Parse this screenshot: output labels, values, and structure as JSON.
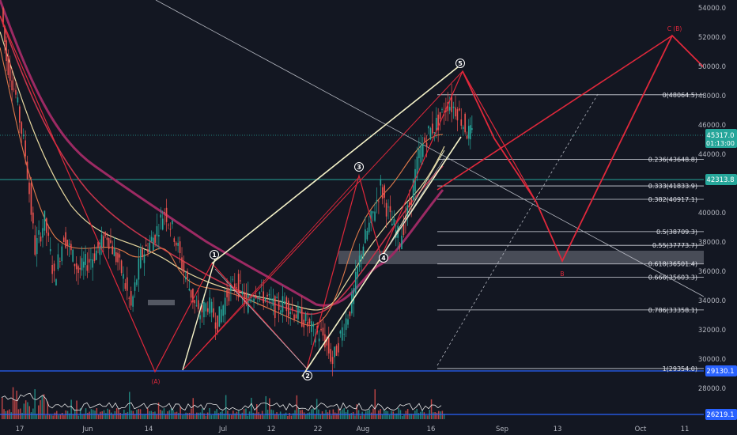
{
  "chart_data": {
    "type": "candlestick",
    "price_axis": {
      "min": 26000,
      "max": 55000,
      "ticks": [
        {
          "value": 54000,
          "label": "54000.0"
        },
        {
          "value": 52000,
          "label": "52000.0"
        },
        {
          "value": 50000,
          "label": "50000.0"
        },
        {
          "value": 48000,
          "label": "48000.0"
        },
        {
          "value": 46000,
          "label": "46000.0"
        },
        {
          "value": 44000,
          "label": "44000.0"
        },
        {
          "value": 40000,
          "label": "40000.0"
        },
        {
          "value": 38000,
          "label": "38000.0"
        },
        {
          "value": 36000,
          "label": "36000.0"
        },
        {
          "value": 34000,
          "label": "34000.0"
        },
        {
          "value": 32000,
          "label": "32000.0"
        },
        {
          "value": 30000,
          "label": "30000.0"
        },
        {
          "value": 28000,
          "label": "28000.0"
        }
      ]
    },
    "time_axis": {
      "ticks": [
        "17",
        "Jun",
        "14",
        "Jul",
        "12",
        "22",
        "Aug",
        "16",
        "Sep",
        "13",
        "Oct",
        "11"
      ]
    },
    "price_badges": [
      {
        "name": "current",
        "value": "45317.0",
        "countdown": "01:13:00",
        "color": "#26a69a"
      },
      {
        "name": "support-line",
        "value": "42313.8",
        "color": "#26a69a"
      },
      {
        "name": "low-line",
        "value": "29130.1",
        "color": "#2962ff"
      },
      {
        "name": "volume-line",
        "value": "26219.1",
        "color": "#2962ff"
      }
    ],
    "fib_levels": [
      {
        "ratio": 0,
        "price": 48064.5,
        "label": "0(48064.5)"
      },
      {
        "ratio": 0.236,
        "price": 43648.8,
        "label": "0.236(43648.8)"
      },
      {
        "ratio": 0.333,
        "price": 41833.9,
        "label": "0.333(41833.9)"
      },
      {
        "ratio": 0.382,
        "price": 40917.1,
        "label": "0.382(40917.1)"
      },
      {
        "ratio": 0.5,
        "price": 38709.3,
        "label": "0.5(38709.3)"
      },
      {
        "ratio": 0.55,
        "price": 37773.7,
        "label": "0.55(37773.7)"
      },
      {
        "ratio": 0.618,
        "price": 36501.4,
        "label": "0.618(36501.4)"
      },
      {
        "ratio": 0.666,
        "price": 35603.3,
        "label": "0.666(35603.3)"
      },
      {
        "ratio": 0.786,
        "price": 33358.1,
        "label": "0.786(33358.1)"
      },
      {
        "ratio": 1,
        "price": 29354.0,
        "label": "1(29354.0)"
      }
    ],
    "wave_labels": [
      "1",
      "2",
      "3",
      "4",
      "5"
    ],
    "corrective_labels": {
      "A_paren": "(A)",
      "B": "B",
      "C_B": "C (B)"
    },
    "close_path": [
      [
        "2021-05-12",
        54000
      ],
      [
        "2021-05-13",
        50500
      ],
      [
        "2021-05-15",
        48000
      ],
      [
        "2021-05-17",
        44000
      ],
      [
        "2021-05-19",
        37500
      ],
      [
        "2021-05-21",
        39500
      ],
      [
        "2021-05-23",
        35500
      ],
      [
        "2021-05-25",
        38500
      ],
      [
        "2021-05-28",
        36000
      ],
      [
        "2021-05-31",
        37000
      ],
      [
        "2021-06-03",
        38500
      ],
      [
        "2021-06-06",
        36000
      ],
      [
        "2021-06-08",
        33500
      ],
      [
        "2021-06-10",
        37000
      ],
      [
        "2021-06-13",
        38500
      ],
      [
        "2021-06-15",
        40200
      ],
      [
        "2021-06-17",
        38500
      ],
      [
        "2021-06-19",
        36000
      ],
      [
        "2021-06-22",
        33000
      ],
      [
        "2021-06-24",
        33800
      ],
      [
        "2021-06-26",
        32500
      ],
      [
        "2021-06-28",
        34500
      ],
      [
        "2021-06-30",
        35200
      ],
      [
        "2021-07-02",
        33800
      ],
      [
        "2021-07-04",
        34800
      ],
      [
        "2021-07-06",
        34200
      ],
      [
        "2021-07-08",
        33500
      ],
      [
        "2021-07-10",
        33900
      ],
      [
        "2021-07-12",
        33200
      ],
      [
        "2021-07-14",
        32700
      ],
      [
        "2021-07-16",
        31800
      ],
      [
        "2021-07-18",
        31600
      ],
      [
        "2021-07-20",
        29800
      ],
      [
        "2021-07-22",
        32000
      ],
      [
        "2021-07-24",
        33800
      ],
      [
        "2021-07-26",
        37500
      ],
      [
        "2021-07-28",
        39500
      ],
      [
        "2021-07-30",
        41800
      ],
      [
        "2021-08-01",
        39500
      ],
      [
        "2021-08-03",
        38200
      ],
      [
        "2021-08-05",
        40500
      ],
      [
        "2021-08-07",
        44000
      ],
      [
        "2021-08-09",
        45500
      ],
      [
        "2021-08-11",
        46200
      ],
      [
        "2021-08-13",
        47500
      ],
      [
        "2021-08-15",
        47000
      ],
      [
        "2021-08-17",
        45500
      ],
      [
        "2021-08-18",
        45317
      ]
    ]
  }
}
